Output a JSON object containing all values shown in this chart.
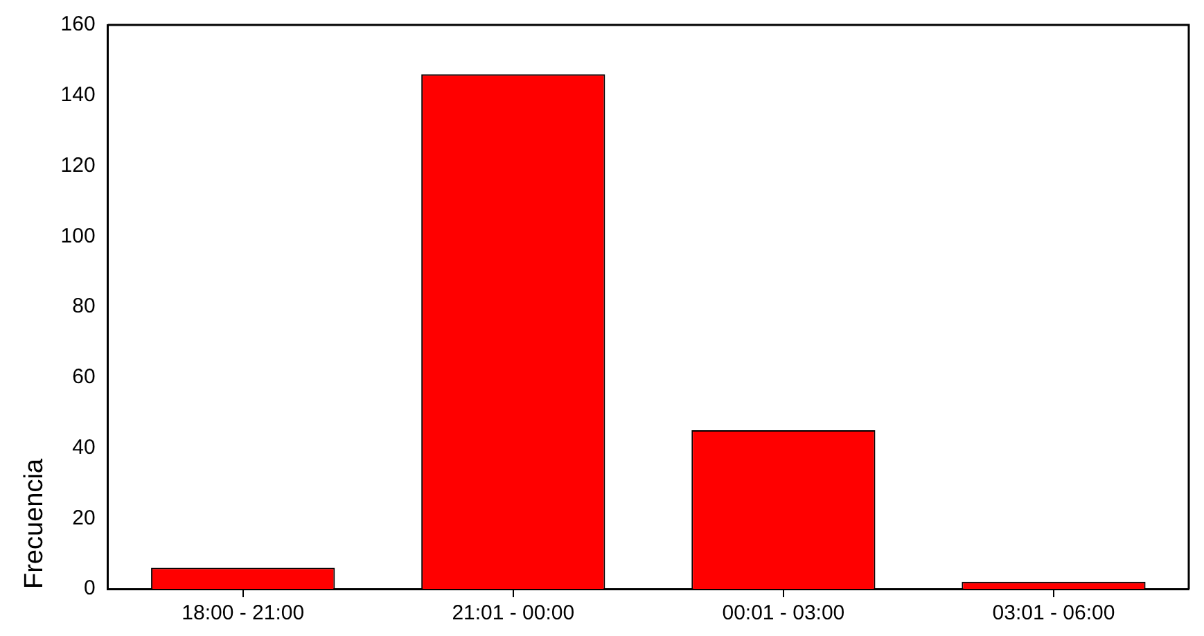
{
  "chart_data": {
    "type": "bar",
    "ylabel": "Frecuencia",
    "categories": [
      "18:00 - 21:00",
      "21:01 - 00:00",
      "00:01 - 03:00",
      "03:01 - 06:00"
    ],
    "values": [
      6,
      146,
      45,
      2
    ],
    "color": "#ff0000",
    "ylim": [
      0,
      160
    ],
    "yticks": [
      0,
      20,
      40,
      60,
      80,
      100,
      120,
      140,
      160
    ],
    "grid": false,
    "legend": false
  }
}
